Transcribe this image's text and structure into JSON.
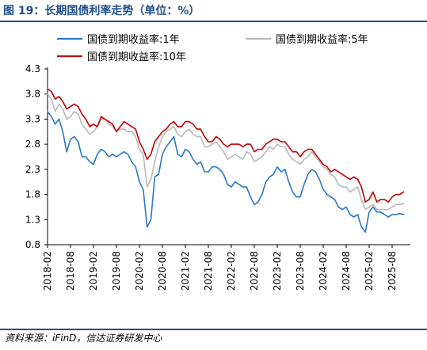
{
  "figure": {
    "title": "图 19：长期国债利率走势（单位：%）",
    "source": "资料来源：iFinD，信达证券研发中心"
  },
  "colors": {
    "y1": "#2a78c7",
    "y5": "#b8b8b8",
    "y10": "#c00000",
    "title": "#1f4e8c"
  },
  "chart_data": {
    "type": "line",
    "title": "",
    "xlabel": "",
    "ylabel": "",
    "ylim": [
      0.8,
      4.3
    ],
    "yticks": [
      "4.3",
      "3.8",
      "3.3",
      "2.8",
      "2.3",
      "1.8",
      "1.3",
      "0.8"
    ],
    "xticks": [
      "2018-02",
      "2018-08",
      "2019-02",
      "2019-08",
      "2020-02",
      "2020-08",
      "2021-02",
      "2021-08",
      "2022-02",
      "2022-08",
      "2023-02",
      "2023-08",
      "2024-02",
      "2024-08",
      "2025-02",
      "2025-08"
    ],
    "legend": [
      "国债到期收益率:1年",
      "国债到期收益率:5年",
      "国债到期收益率:10年"
    ],
    "legend_position": "top",
    "grid": false,
    "series": [
      {
        "name": "国债到期收益率:1年",
        "x": [
          "2018-02",
          "2018-03",
          "2018-04",
          "2018-05",
          "2018-06",
          "2018-07",
          "2018-08",
          "2018-09",
          "2018-10",
          "2018-11",
          "2018-12",
          "2019-01",
          "2019-02",
          "2019-03",
          "2019-04",
          "2019-05",
          "2019-06",
          "2019-07",
          "2019-08",
          "2019-09",
          "2019-10",
          "2019-11",
          "2019-12",
          "2020-01",
          "2020-02",
          "2020-03",
          "2020-04",
          "2020-05",
          "2020-06",
          "2020-07",
          "2020-08",
          "2020-09",
          "2020-10",
          "2020-11",
          "2020-12",
          "2021-01",
          "2021-02",
          "2021-03",
          "2021-04",
          "2021-05",
          "2021-06",
          "2021-07",
          "2021-08",
          "2021-09",
          "2021-10",
          "2021-11",
          "2021-12",
          "2022-01",
          "2022-02",
          "2022-03",
          "2022-04",
          "2022-05",
          "2022-06",
          "2022-07",
          "2022-08",
          "2022-09",
          "2022-10",
          "2022-11",
          "2022-12",
          "2023-01",
          "2023-02",
          "2023-03",
          "2023-04",
          "2023-05",
          "2023-06",
          "2023-07",
          "2023-08",
          "2023-09",
          "2023-10",
          "2023-11",
          "2023-12",
          "2024-01",
          "2024-02",
          "2024-03",
          "2024-04",
          "2024-05",
          "2024-06",
          "2024-07",
          "2024-08",
          "2024-09",
          "2024-10",
          "2024-11",
          "2024-12",
          "2025-01",
          "2025-02",
          "2025-03",
          "2025-04",
          "2025-05",
          "2025-06",
          "2025-07",
          "2025-08",
          "2025-09",
          "2025-10",
          "2025-11"
        ],
        "values": [
          3.45,
          3.35,
          3.2,
          3.3,
          3.05,
          2.65,
          2.9,
          2.95,
          2.85,
          2.55,
          2.55,
          2.45,
          2.4,
          2.6,
          2.7,
          2.65,
          2.55,
          2.6,
          2.55,
          2.6,
          2.65,
          2.6,
          2.45,
          2.35,
          2.05,
          1.9,
          1.15,
          1.3,
          2.15,
          2.2,
          2.6,
          2.75,
          2.85,
          2.95,
          2.6,
          2.55,
          2.7,
          2.65,
          2.5,
          2.4,
          2.45,
          2.25,
          2.25,
          2.35,
          2.35,
          2.3,
          2.2,
          2.0,
          1.95,
          2.05,
          2.0,
          1.95,
          1.95,
          1.75,
          1.6,
          1.65,
          1.8,
          2.05,
          2.15,
          2.2,
          2.35,
          2.25,
          2.3,
          2.05,
          1.85,
          1.75,
          1.75,
          2.0,
          2.2,
          2.3,
          2.25,
          2.1,
          1.9,
          1.8,
          1.75,
          1.7,
          1.55,
          1.5,
          1.55,
          1.4,
          1.35,
          1.4,
          1.15,
          1.05,
          1.45,
          1.55,
          1.45,
          1.45,
          1.4,
          1.35,
          1.4,
          1.4,
          1.42,
          1.4
        ]
      },
      {
        "name": "国债到期收益率:5年",
        "x": [
          "2018-02",
          "2018-03",
          "2018-04",
          "2018-05",
          "2018-06",
          "2018-07",
          "2018-08",
          "2018-09",
          "2018-10",
          "2018-11",
          "2018-12",
          "2019-01",
          "2019-02",
          "2019-03",
          "2019-04",
          "2019-05",
          "2019-06",
          "2019-07",
          "2019-08",
          "2019-09",
          "2019-10",
          "2019-11",
          "2019-12",
          "2020-01",
          "2020-02",
          "2020-03",
          "2020-04",
          "2020-05",
          "2020-06",
          "2020-07",
          "2020-08",
          "2020-09",
          "2020-10",
          "2020-11",
          "2020-12",
          "2021-01",
          "2021-02",
          "2021-03",
          "2021-04",
          "2021-05",
          "2021-06",
          "2021-07",
          "2021-08",
          "2021-09",
          "2021-10",
          "2021-11",
          "2021-12",
          "2022-01",
          "2022-02",
          "2022-03",
          "2022-04",
          "2022-05",
          "2022-06",
          "2022-07",
          "2022-08",
          "2022-09",
          "2022-10",
          "2022-11",
          "2022-12",
          "2023-01",
          "2023-02",
          "2023-03",
          "2023-04",
          "2023-05",
          "2023-06",
          "2023-07",
          "2023-08",
          "2023-09",
          "2023-10",
          "2023-11",
          "2023-12",
          "2024-01",
          "2024-02",
          "2024-03",
          "2024-04",
          "2024-05",
          "2024-06",
          "2024-07",
          "2024-08",
          "2024-09",
          "2024-10",
          "2024-11",
          "2024-12",
          "2025-01",
          "2025-02",
          "2025-03",
          "2025-04",
          "2025-05",
          "2025-06",
          "2025-07",
          "2025-08",
          "2025-09",
          "2025-10",
          "2025-11"
        ],
        "values": [
          3.8,
          3.7,
          3.45,
          3.6,
          3.5,
          3.3,
          3.35,
          3.45,
          3.4,
          3.2,
          3.1,
          3.0,
          3.05,
          3.15,
          3.3,
          3.3,
          3.2,
          3.15,
          3.05,
          3.1,
          3.1,
          3.05,
          3.05,
          2.95,
          2.7,
          2.6,
          1.95,
          2.1,
          2.45,
          2.75,
          2.95,
          3.05,
          3.1,
          3.15,
          3.0,
          2.95,
          3.05,
          3.1,
          3.0,
          2.95,
          2.95,
          2.75,
          2.75,
          2.8,
          2.85,
          2.75,
          2.65,
          2.5,
          2.55,
          2.6,
          2.55,
          2.5,
          2.65,
          2.6,
          2.45,
          2.5,
          2.55,
          2.65,
          2.75,
          2.7,
          2.8,
          2.75,
          2.75,
          2.6,
          2.5,
          2.45,
          2.4,
          2.5,
          2.55,
          2.65,
          2.55,
          2.45,
          2.35,
          2.3,
          2.2,
          2.15,
          2.0,
          1.95,
          1.95,
          1.85,
          1.9,
          1.95,
          1.7,
          1.5,
          1.55,
          1.6,
          1.5,
          1.5,
          1.5,
          1.5,
          1.55,
          1.6,
          1.6,
          1.62
        ]
      },
      {
        "name": "国债到期收益率:10年",
        "x": [
          "2018-02",
          "2018-03",
          "2018-04",
          "2018-05",
          "2018-06",
          "2018-07",
          "2018-08",
          "2018-09",
          "2018-10",
          "2018-11",
          "2018-12",
          "2019-01",
          "2019-02",
          "2019-03",
          "2019-04",
          "2019-05",
          "2019-06",
          "2019-07",
          "2019-08",
          "2019-09",
          "2019-10",
          "2019-11",
          "2019-12",
          "2020-01",
          "2020-02",
          "2020-03",
          "2020-04",
          "2020-05",
          "2020-06",
          "2020-07",
          "2020-08",
          "2020-09",
          "2020-10",
          "2020-11",
          "2020-12",
          "2021-01",
          "2021-02",
          "2021-03",
          "2021-04",
          "2021-05",
          "2021-06",
          "2021-07",
          "2021-08",
          "2021-09",
          "2021-10",
          "2021-11",
          "2021-12",
          "2022-01",
          "2022-02",
          "2022-03",
          "2022-04",
          "2022-05",
          "2022-06",
          "2022-07",
          "2022-08",
          "2022-09",
          "2022-10",
          "2022-11",
          "2022-12",
          "2023-01",
          "2023-02",
          "2023-03",
          "2023-04",
          "2023-05",
          "2023-06",
          "2023-07",
          "2023-08",
          "2023-09",
          "2023-10",
          "2023-11",
          "2023-12",
          "2024-01",
          "2024-02",
          "2024-03",
          "2024-04",
          "2024-05",
          "2024-06",
          "2024-07",
          "2024-08",
          "2024-09",
          "2024-10",
          "2024-11",
          "2024-12",
          "2025-01",
          "2025-02",
          "2025-03",
          "2025-04",
          "2025-05",
          "2025-06",
          "2025-07",
          "2025-08",
          "2025-09",
          "2025-10",
          "2025-11"
        ],
        "values": [
          3.9,
          3.85,
          3.7,
          3.75,
          3.65,
          3.5,
          3.55,
          3.6,
          3.55,
          3.4,
          3.3,
          3.15,
          3.2,
          3.15,
          3.35,
          3.3,
          3.25,
          3.2,
          3.05,
          3.15,
          3.25,
          3.2,
          3.15,
          3.1,
          2.85,
          2.7,
          2.5,
          2.6,
          2.85,
          2.95,
          3.05,
          3.1,
          3.2,
          3.25,
          3.15,
          3.15,
          3.25,
          3.25,
          3.2,
          3.1,
          3.1,
          2.95,
          2.85,
          2.85,
          2.95,
          2.9,
          2.8,
          2.75,
          2.8,
          2.8,
          2.8,
          2.75,
          2.8,
          2.8,
          2.65,
          2.7,
          2.7,
          2.8,
          2.85,
          2.9,
          2.9,
          2.85,
          2.85,
          2.75,
          2.65,
          2.65,
          2.55,
          2.65,
          2.7,
          2.7,
          2.6,
          2.5,
          2.4,
          2.35,
          2.25,
          2.3,
          2.25,
          2.2,
          2.15,
          2.1,
          2.15,
          2.1,
          1.95,
          1.65,
          1.7,
          1.85,
          1.65,
          1.7,
          1.7,
          1.65,
          1.75,
          1.8,
          1.8,
          1.85
        ]
      }
    ]
  }
}
